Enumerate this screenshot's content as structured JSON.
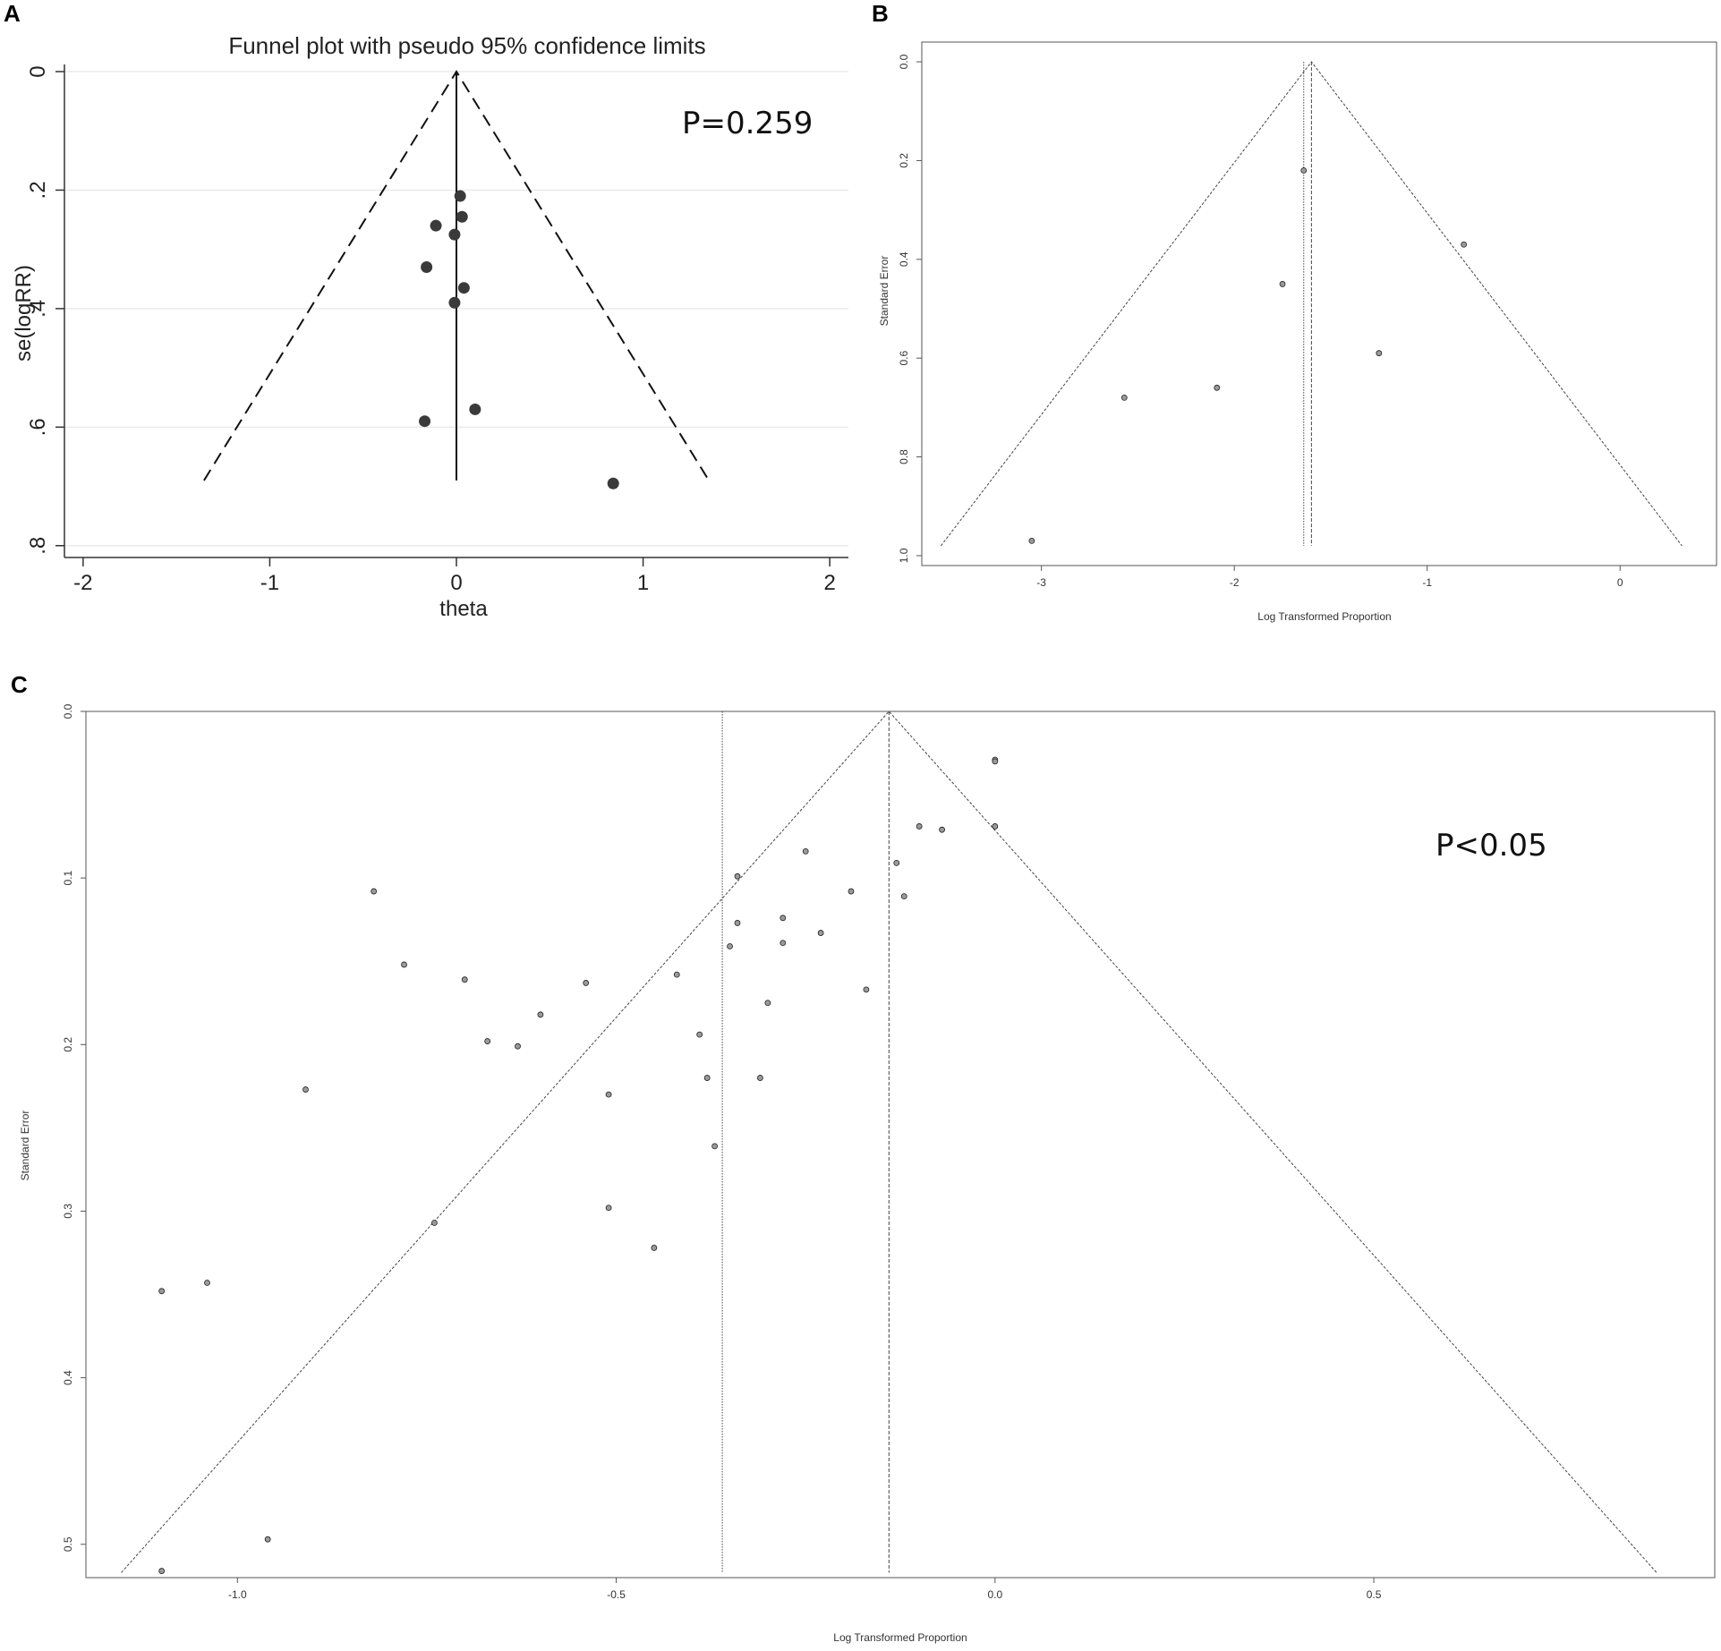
{
  "panels": {
    "a": {
      "letter": "A",
      "annotation": "P=0.259",
      "colors": {
        "points": "#3a3a3a",
        "grid": "#e6e6e6",
        "lines": "#111111"
      }
    },
    "b": {
      "letter": "B",
      "annotation": "",
      "colors": {
        "points": "#9a9a9a",
        "lines": "#444444"
      }
    },
    "c": {
      "letter": "C",
      "annotation": "P<0.05",
      "colors": {
        "points": "#9a9a9a",
        "lines": "#444444"
      }
    }
  },
  "chart_data": [
    {
      "panel": "A",
      "type": "scatter",
      "title": "Funnel plot with pseudo 95% confidence limits",
      "xlabel": "theta",
      "ylabel": "se(logRR)",
      "xlim": [
        -2.1,
        2.1
      ],
      "ylim": [
        0,
        0.82
      ],
      "y_reversed": true,
      "grid": true,
      "x_ticks": [
        -2,
        -1,
        0,
        1,
        2
      ],
      "x_tick_labels": [
        "-2",
        "-1",
        "0",
        "1",
        "2"
      ],
      "y_ticks": [
        0,
        0.2,
        0.4,
        0.6,
        0.8
      ],
      "y_tick_labels": [
        "0",
        ".2",
        ".4",
        ".6",
        ".8"
      ],
      "center": 0,
      "funnel_max_se": 0.69,
      "funnel_z": 1.96,
      "points": [
        {
          "x": 0.02,
          "y": 0.21
        },
        {
          "x": 0.03,
          "y": 0.245
        },
        {
          "x": -0.11,
          "y": 0.26
        },
        {
          "x": -0.01,
          "y": 0.275
        },
        {
          "x": -0.16,
          "y": 0.33
        },
        {
          "x": 0.04,
          "y": 0.365
        },
        {
          "x": -0.01,
          "y": 0.39
        },
        {
          "x": 0.1,
          "y": 0.57
        },
        {
          "x": -0.17,
          "y": 0.59
        },
        {
          "x": 0.84,
          "y": 0.695
        }
      ]
    },
    {
      "panel": "B",
      "type": "scatter",
      "title": "",
      "xlabel": "Log Transformed Proportion",
      "ylabel": "Standard Error",
      "xlim": [
        -3.62,
        0.5
      ],
      "ylim": [
        -0.04,
        1.02
      ],
      "y_reversed": true,
      "grid": false,
      "x_ticks": [
        -3,
        -2,
        -1,
        0
      ],
      "x_tick_labels": [
        "-3",
        "-2",
        "-1",
        "0"
      ],
      "y_ticks": [
        0,
        0.2,
        0.4,
        0.6,
        0.8,
        1.0
      ],
      "y_tick_labels": [
        "0.0",
        "0.2",
        "0.4",
        "0.6",
        "0.8",
        "1.0"
      ],
      "center": -1.6,
      "reference_line": -1.64,
      "funnel_max_se": 0.98,
      "funnel_z": 1.96,
      "points": [
        {
          "x": -1.64,
          "y": 0.22
        },
        {
          "x": -0.81,
          "y": 0.37
        },
        {
          "x": -1.75,
          "y": 0.45
        },
        {
          "x": -1.25,
          "y": 0.59
        },
        {
          "x": -2.09,
          "y": 0.66
        },
        {
          "x": -2.57,
          "y": 0.68
        },
        {
          "x": -3.05,
          "y": 0.97
        }
      ]
    },
    {
      "panel": "C",
      "type": "scatter",
      "title": "",
      "xlabel": "Log Transformed Proportion",
      "ylabel": "Standard Error",
      "xlim": [
        -1.2,
        0.95
      ],
      "ylim": [
        0,
        0.52
      ],
      "y_reversed": true,
      "grid": false,
      "x_ticks": [
        -1.0,
        -0.5,
        0.0,
        0.5
      ],
      "x_tick_labels": [
        "-1.0",
        "-0.5",
        "0.0",
        "0.5"
      ],
      "y_ticks": [
        0,
        0.1,
        0.2,
        0.3,
        0.4,
        0.5
      ],
      "y_tick_labels": [
        "0.0",
        "0.1",
        "0.2",
        "0.3",
        "0.4",
        "0.5"
      ],
      "center": -0.14,
      "reference_line": -0.36,
      "funnel_max_se": 0.517,
      "funnel_z": 1.96,
      "points": [
        {
          "x": 0.0,
          "y": 0.029
        },
        {
          "x": 0.0,
          "y": 0.03
        },
        {
          "x": -0.1,
          "y": 0.069
        },
        {
          "x": -0.07,
          "y": 0.071
        },
        {
          "x": 0.0,
          "y": 0.069
        },
        {
          "x": -0.25,
          "y": 0.084
        },
        {
          "x": -0.13,
          "y": 0.091
        },
        {
          "x": -0.34,
          "y": 0.099
        },
        {
          "x": -0.82,
          "y": 0.108
        },
        {
          "x": -0.19,
          "y": 0.108
        },
        {
          "x": -0.12,
          "y": 0.111
        },
        {
          "x": -0.28,
          "y": 0.124
        },
        {
          "x": -0.34,
          "y": 0.127
        },
        {
          "x": -0.23,
          "y": 0.133
        },
        {
          "x": -0.28,
          "y": 0.139
        },
        {
          "x": -0.35,
          "y": 0.141
        },
        {
          "x": -0.78,
          "y": 0.152
        },
        {
          "x": -0.42,
          "y": 0.158
        },
        {
          "x": -0.7,
          "y": 0.161
        },
        {
          "x": -0.54,
          "y": 0.163
        },
        {
          "x": -0.17,
          "y": 0.167
        },
        {
          "x": -0.3,
          "y": 0.175
        },
        {
          "x": -0.6,
          "y": 0.182
        },
        {
          "x": -0.39,
          "y": 0.194
        },
        {
          "x": -0.67,
          "y": 0.198
        },
        {
          "x": -0.63,
          "y": 0.201
        },
        {
          "x": -0.38,
          "y": 0.22
        },
        {
          "x": -0.31,
          "y": 0.22
        },
        {
          "x": -0.91,
          "y": 0.227
        },
        {
          "x": -0.51,
          "y": 0.23
        },
        {
          "x": -0.37,
          "y": 0.261
        },
        {
          "x": -0.51,
          "y": 0.298
        },
        {
          "x": -0.74,
          "y": 0.307
        },
        {
          "x": -0.45,
          "y": 0.322
        },
        {
          "x": -1.04,
          "y": 0.343
        },
        {
          "x": -1.1,
          "y": 0.348
        },
        {
          "x": -0.96,
          "y": 0.497
        },
        {
          "x": -1.1,
          "y": 0.516
        }
      ]
    }
  ]
}
